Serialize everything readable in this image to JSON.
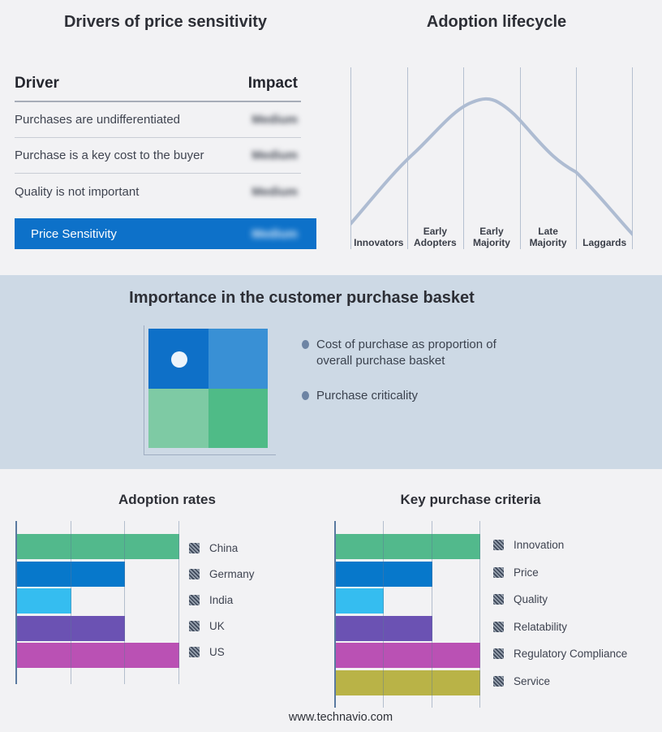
{
  "colors": {
    "page_bg": "#f2f2f4",
    "band_bg": "#cdd9e5",
    "accent_blue": "#0d71c9",
    "curve": "#aebcd2",
    "bullet_dot": "#6d84a4"
  },
  "drivers": {
    "title": "Drivers of price sensitivity",
    "columns": {
      "driver": "Driver",
      "impact": "Impact"
    },
    "rows": [
      {
        "driver": "Purchases are undifferentiated",
        "impact": "Medium"
      },
      {
        "driver": "Purchase is a key cost to the buyer",
        "impact": "Medium"
      },
      {
        "driver": "Quality is not important",
        "impact": "Medium"
      }
    ],
    "highlight_row": {
      "driver": "Price Sensitivity",
      "impact": "Medium"
    },
    "impact_values_obscured": true
  },
  "basket": {
    "title": "Importance in the customer purchase basket",
    "bullets": [
      "Cost of purchase as proportion of overall purchase basket",
      "Purchase criticality"
    ],
    "quadrant_colors": [
      "#0e70c8",
      "#3990d5",
      "#7ecaa4",
      "#4fbb87"
    ]
  },
  "chart_data": [
    {
      "id": "adoption-lifecycle",
      "type": "line",
      "title": "Adoption lifecycle",
      "categories": [
        "Innovators",
        "Early Adopters",
        "Early Majority",
        "Late Majority",
        "Laggards"
      ],
      "curve_shape": "bell",
      "peak_category": "Early Majority",
      "gridlines": "vertical-only",
      "line_color": "#aebcd2",
      "axis_labels": "bottom"
    },
    {
      "id": "adoption-rates",
      "type": "bar",
      "orientation": "horizontal",
      "title": "Adoption rates",
      "categories": [
        "China",
        "Germany",
        "India",
        "UK",
        "US"
      ],
      "values": [
        3,
        2,
        1,
        2,
        3
      ],
      "xlim": [
        0,
        3
      ],
      "bar_colors": [
        "#52b98c",
        "#0778cb",
        "#35bdf0",
        "#6b52b3",
        "#ba51b4"
      ],
      "legend_position": "right",
      "value_axis_labels": "hidden"
    },
    {
      "id": "key-purchase-criteria",
      "type": "bar",
      "orientation": "horizontal",
      "title": "Key purchase criteria",
      "categories": [
        "Innovation",
        "Price",
        "Quality",
        "Relatability",
        "Regulatory Compliance",
        "Service"
      ],
      "values": [
        3,
        2,
        1,
        2,
        3,
        3
      ],
      "xlim": [
        0,
        3
      ],
      "bar_colors": [
        "#52b98c",
        "#0778cb",
        "#35bdf0",
        "#6b52b3",
        "#ba51b4",
        "#b9b347"
      ],
      "legend_position": "right",
      "value_axis_labels": "hidden"
    }
  ],
  "footer": {
    "text": "www.technavio.com"
  }
}
